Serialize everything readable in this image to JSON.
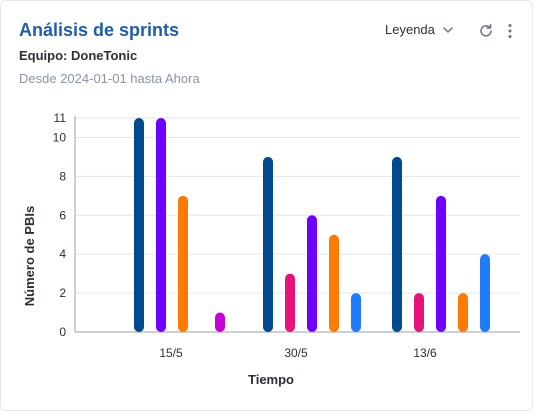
{
  "header": {
    "title": "Análisis de sprints",
    "team": "Equipo: DoneTonic",
    "date_range": "Desde 2024-01-01 hasta Ahora",
    "legend_label": "Leyenda",
    "legend_icon": "chevron-down-icon",
    "refresh_icon": "refresh-icon",
    "more_icon": "more-vertical-icon"
  },
  "colors": {
    "title": "#1f5ea8",
    "grid": "#e3e6ea",
    "series": [
      "#004a8f",
      "#6f00ff",
      "#ff7a00",
      "#c800d8",
      "#e8137a",
      "#1f7cff"
    ]
  },
  "chart_data": {
    "type": "bar",
    "xlabel": "Tiempo",
    "ylabel": "Número de PBIs",
    "categories": [
      "15/5",
      "30/5",
      "13/6"
    ],
    "yticks": [
      0,
      2,
      4,
      6,
      8,
      10,
      11
    ],
    "ylim": [
      0,
      11
    ],
    "grid": true,
    "groups": [
      {
        "category": "15/5",
        "bars": [
          {
            "value": 11,
            "color_index": 0
          },
          {
            "value": 11,
            "color_index": 1
          },
          {
            "value": 7,
            "color_index": 2
          },
          {
            "value": 1,
            "color_index": 3
          }
        ]
      },
      {
        "category": "30/5",
        "bars": [
          {
            "value": 9,
            "color_index": 0
          },
          {
            "value": 3,
            "color_index": 4
          },
          {
            "value": 6,
            "color_index": 1
          },
          {
            "value": 5,
            "color_index": 2
          },
          {
            "value": 2,
            "color_index": 5
          }
        ]
      },
      {
        "category": "13/6",
        "bars": [
          {
            "value": 9,
            "color_index": 0
          },
          {
            "value": 2,
            "color_index": 4
          },
          {
            "value": 7,
            "color_index": 1
          },
          {
            "value": 2,
            "color_index": 2
          },
          {
            "value": 4,
            "color_index": 5
          }
        ]
      }
    ]
  }
}
